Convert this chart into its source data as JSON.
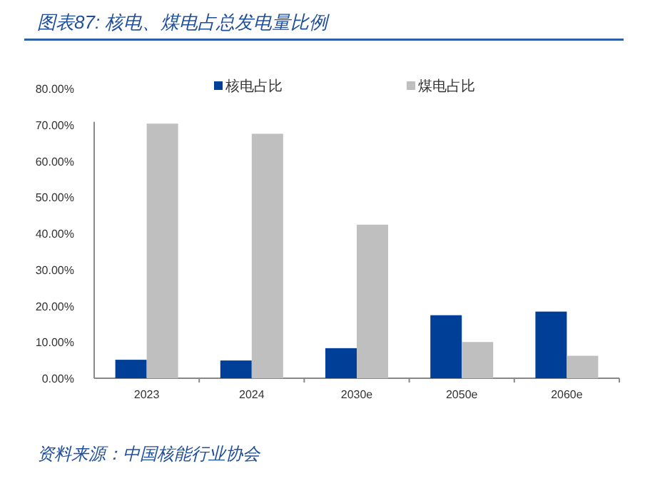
{
  "chart_data": {
    "type": "bar",
    "title": "图表87: 核电、煤电占总发电量比例",
    "categories": [
      "2023",
      "2024",
      "2030e",
      "2050e",
      "2060e"
    ],
    "series": [
      {
        "name": "核电占比",
        "color": "#003f98",
        "values": [
          5.1,
          4.9,
          8.3,
          17.4,
          18.4
        ]
      },
      {
        "name": "煤电占比",
        "color": "#bfbfbf",
        "values": [
          70.3,
          67.5,
          42.4,
          10.0,
          6.2
        ]
      }
    ],
    "ylim": [
      0,
      80
    ],
    "yticks": [
      {
        "value": 0,
        "label": "0.00%"
      },
      {
        "value": 10,
        "label": "10.00%"
      },
      {
        "value": 20,
        "label": "20.00%"
      },
      {
        "value": 30,
        "label": "30.00%"
      },
      {
        "value": 40,
        "label": "40.00%"
      },
      {
        "value": 50,
        "label": "50.00%"
      },
      {
        "value": 60,
        "label": "60.00%"
      },
      {
        "value": 70,
        "label": "70.00%"
      },
      {
        "value": 80,
        "label": "80.00%"
      }
    ],
    "legend": "top",
    "annotations": [
      "资料来源：中国核能行业协会"
    ]
  }
}
